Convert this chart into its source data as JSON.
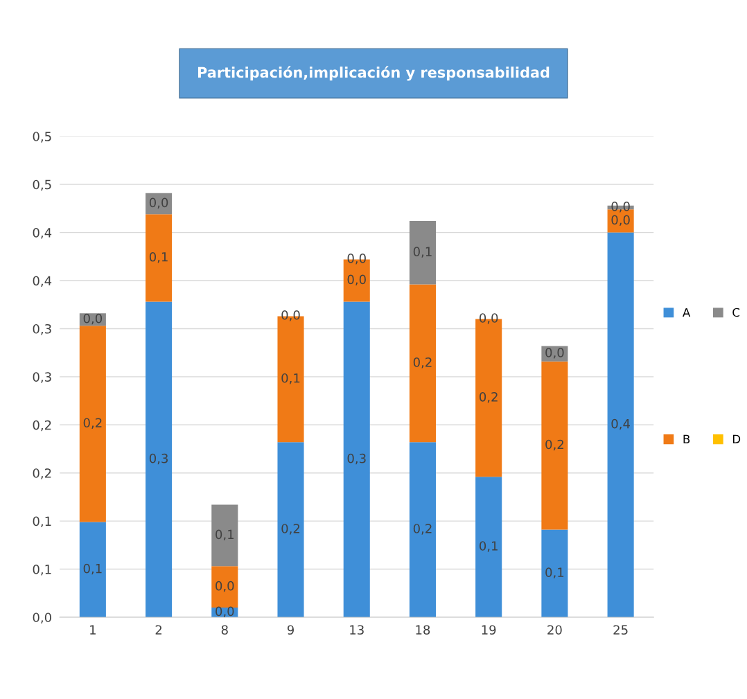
{
  "chart_data": {
    "type": "bar",
    "stacked": true,
    "title": "Participación,implicación y responsabilidad",
    "categories": [
      "1",
      "2",
      "8",
      "9",
      "13",
      "18",
      "19",
      "20",
      "25"
    ],
    "series": [
      {
        "name": "A",
        "color": "#3f8fd8",
        "values": [
          0.099,
          0.328,
          0.01,
          0.182,
          0.328,
          0.182,
          0.146,
          0.091,
          0.4
        ],
        "value_labels": [
          "0,1",
          "0,3",
          "0,0",
          "0,2",
          "0,3",
          "0,2",
          "0,1",
          "0,1",
          "0,4"
        ]
      },
      {
        "name": "B",
        "color": "#f07a16",
        "values": [
          0.204,
          0.091,
          0.043,
          0.131,
          0.044,
          0.164,
          0.164,
          0.175,
          0.024
        ],
        "value_labels": [
          "0,2",
          "0,1",
          "0,0",
          "0,1",
          "0,0",
          "0,2",
          "0,2",
          "0,2",
          "0,0"
        ]
      },
      {
        "name": "C",
        "color": "#8a8a8a",
        "values": [
          0.013,
          0.022,
          0.064,
          0,
          0,
          0.066,
          0,
          0.016,
          0.004
        ],
        "value_labels": [
          "0,0",
          "0,0",
          "0,1",
          "0,0",
          "0,0",
          "0,1",
          "0,0",
          "0,0",
          "0,0"
        ]
      },
      {
        "name": "D",
        "color": "#ffc000",
        "values": [
          0,
          0,
          0,
          0,
          0,
          0,
          0,
          0,
          0
        ],
        "value_labels": [
          null,
          null,
          null,
          null,
          null,
          null,
          null,
          null,
          null
        ]
      }
    ],
    "ylim": [
      0,
      0.5
    ],
    "yticks": [
      {
        "value": 0,
        "label": "0,0"
      },
      {
        "value": 0.05,
        "label": "0,1"
      },
      {
        "value": 0.1,
        "label": "0,1"
      },
      {
        "value": 0.15,
        "label": "0,2"
      },
      {
        "value": 0.2,
        "label": "0,2"
      },
      {
        "value": 0.25,
        "label": "0,3"
      },
      {
        "value": 0.3,
        "label": "0,3"
      },
      {
        "value": 0.35,
        "label": "0,4"
      },
      {
        "value": 0.4,
        "label": "0,4"
      },
      {
        "value": 0.45,
        "label": "0,5"
      },
      {
        "value": 0.5,
        "label": "0,5"
      }
    ],
    "grid": "y",
    "legend": "right"
  }
}
